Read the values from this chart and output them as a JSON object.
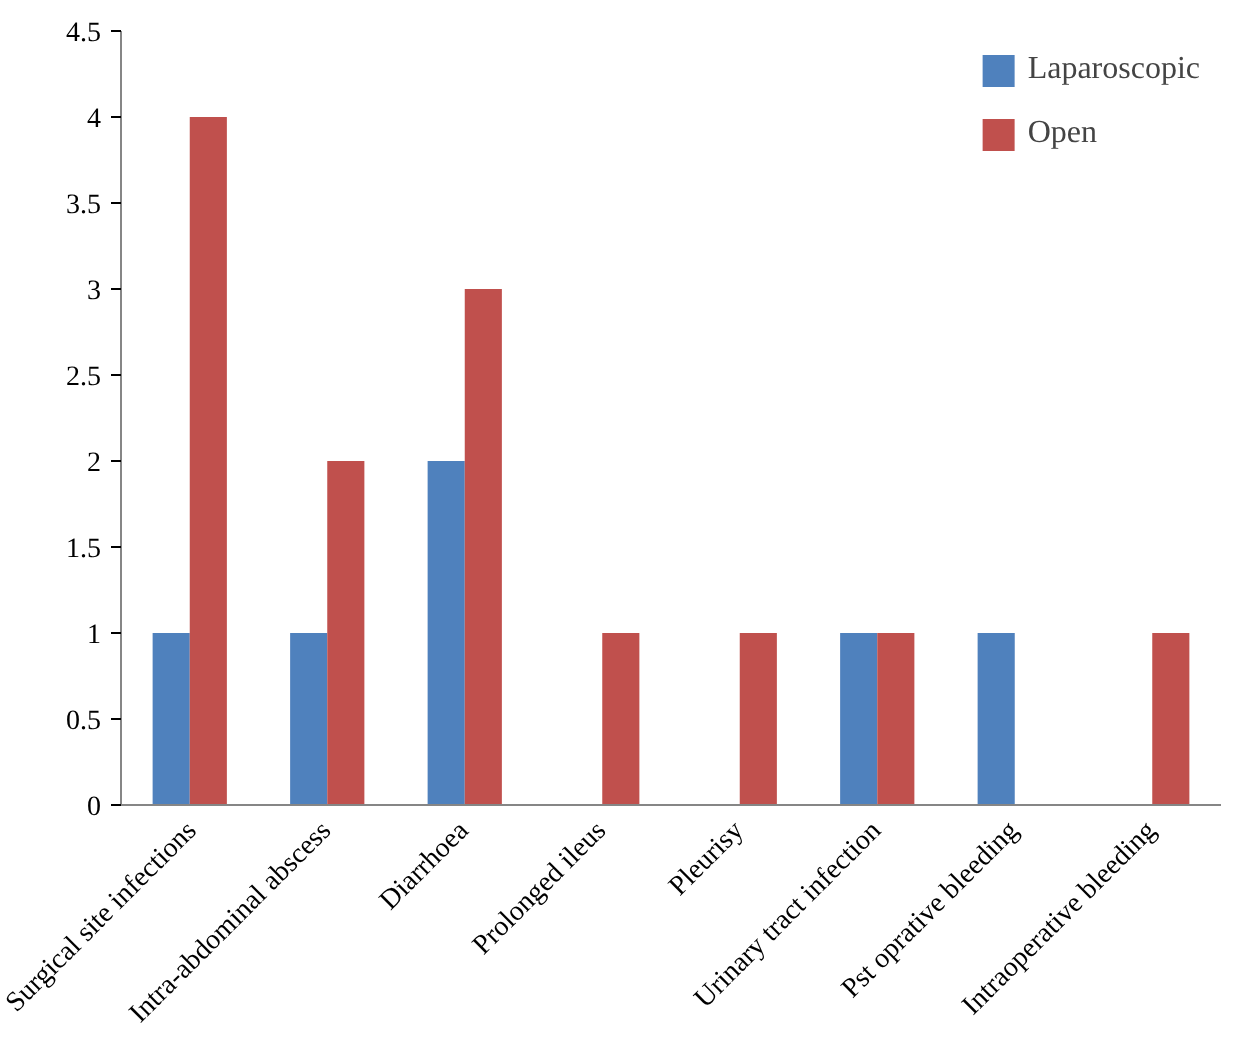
{
  "chart_data": {
    "type": "bar",
    "categories": [
      "Surgical site infections",
      "Intra-abdominal abscess",
      "Diarrhoea",
      "Prolonged ileus",
      "Pleurisy",
      "Urinary tract infection",
      "Pst oprative bleeding",
      "Intraoperative bleeding"
    ],
    "series": [
      {
        "name": "Laparoscopic",
        "color": "#4f81bd",
        "values": [
          1,
          1,
          2,
          0,
          0,
          1,
          1,
          0
        ]
      },
      {
        "name": "Open",
        "color": "#c0504d",
        "values": [
          4,
          2,
          3,
          1,
          1,
          1,
          0,
          1
        ]
      }
    ],
    "ylim": [
      0,
      4.5
    ],
    "yticks": [
      0,
      0.5,
      1,
      1.5,
      2,
      2.5,
      3,
      3.5,
      4,
      4.5
    ],
    "grid": false,
    "legend": "top right"
  }
}
